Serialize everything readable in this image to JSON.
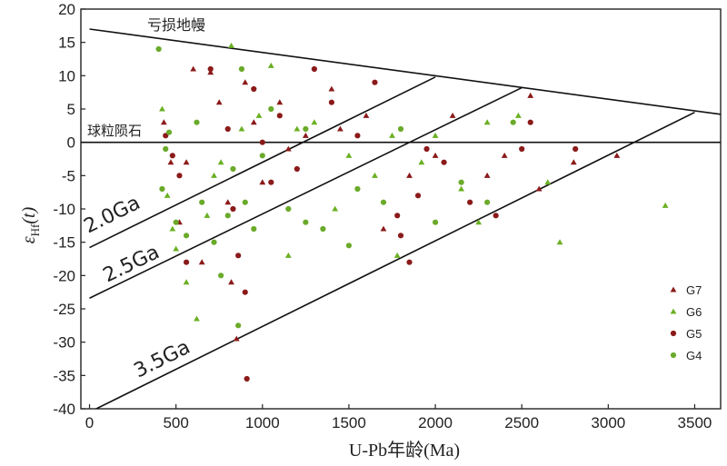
{
  "chart_data": {
    "type": "scatter",
    "title": "",
    "xlabel": "U-Pb年龄(Ma)",
    "ylabel": "εHf(t)",
    "xlim": [
      -50,
      3650
    ],
    "ylim": [
      -40,
      20
    ],
    "xticks": [
      0,
      500,
      1000,
      1500,
      2000,
      2500,
      3000,
      3500
    ],
    "yticks": [
      20,
      15,
      10,
      5,
      0,
      -5,
      -10,
      -15,
      -20,
      -25,
      -30,
      -35,
      -40
    ],
    "grid": false,
    "legend_position": "right",
    "reference_lines": [
      {
        "label": "亏损地幔",
        "points": [
          [
            0,
            17
          ],
          [
            3650,
            4.2
          ]
        ]
      },
      {
        "label": "球粒陨石",
        "points": [
          [
            -50,
            0
          ],
          [
            3650,
            0
          ]
        ]
      },
      {
        "label": "2.0Ga",
        "points": [
          [
            0,
            -15.8
          ],
          [
            2000,
            9.8
          ]
        ]
      },
      {
        "label": "2.5Ga",
        "points": [
          [
            0,
            -23.4
          ],
          [
            2500,
            8.2
          ]
        ]
      },
      {
        "label": "3.5Ga",
        "points": [
          [
            0,
            -40.5
          ],
          [
            3500,
            4.5
          ]
        ]
      }
    ],
    "series": [
      {
        "name": "G7",
        "marker": "triangle",
        "color": "#8b1a1a",
        "points": [
          [
            430,
            3
          ],
          [
            470,
            -3
          ],
          [
            520,
            -12
          ],
          [
            600,
            11
          ],
          [
            700,
            10.5
          ],
          [
            750,
            6
          ],
          [
            800,
            -9
          ],
          [
            820,
            -21
          ],
          [
            850,
            -29.5
          ],
          [
            900,
            9
          ],
          [
            950,
            3
          ],
          [
            1000,
            -6
          ],
          [
            1100,
            6
          ],
          [
            1150,
            -1
          ],
          [
            1250,
            1
          ],
          [
            1400,
            8
          ],
          [
            1450,
            2
          ],
          [
            1600,
            4
          ],
          [
            1700,
            -13
          ],
          [
            1850,
            -5
          ],
          [
            2000,
            -2
          ],
          [
            2100,
            4
          ],
          [
            2300,
            -5
          ],
          [
            2400,
            -2
          ],
          [
            2550,
            7
          ],
          [
            2600,
            -7
          ],
          [
            2800,
            -3
          ],
          [
            3050,
            -2
          ],
          [
            650,
            -18
          ],
          [
            560,
            -3
          ]
        ]
      },
      {
        "name": "G6",
        "marker": "triangle",
        "color": "#6ab023",
        "points": [
          [
            420,
            5
          ],
          [
            450,
            -8
          ],
          [
            480,
            -13
          ],
          [
            500,
            -16
          ],
          [
            560,
            -21
          ],
          [
            620,
            -26.5
          ],
          [
            680,
            -11
          ],
          [
            760,
            -3
          ],
          [
            820,
            14.5
          ],
          [
            880,
            2
          ],
          [
            980,
            4
          ],
          [
            1050,
            11.5
          ],
          [
            1150,
            -17
          ],
          [
            1300,
            3
          ],
          [
            1420,
            -10
          ],
          [
            1500,
            -2
          ],
          [
            1650,
            -5
          ],
          [
            1780,
            -17
          ],
          [
            1920,
            -3
          ],
          [
            2000,
            1
          ],
          [
            2150,
            -7
          ],
          [
            2300,
            3
          ],
          [
            2480,
            4
          ],
          [
            2650,
            -6
          ],
          [
            2720,
            -15
          ],
          [
            3330,
            -9.5
          ],
          [
            1750,
            1
          ],
          [
            2250,
            -12
          ],
          [
            720,
            -5
          ],
          [
            1200,
            2
          ]
        ]
      },
      {
        "name": "G5",
        "marker": "circle",
        "color": "#8b1a1a",
        "points": [
          [
            440,
            1
          ],
          [
            480,
            -2
          ],
          [
            520,
            -5
          ],
          [
            560,
            -18
          ],
          [
            700,
            11
          ],
          [
            800,
            2
          ],
          [
            830,
            -10
          ],
          [
            860,
            -17
          ],
          [
            900,
            -22.5
          ],
          [
            910,
            -35.5
          ],
          [
            950,
            8
          ],
          [
            1000,
            0
          ],
          [
            1050,
            -6
          ],
          [
            1100,
            4
          ],
          [
            1200,
            -4
          ],
          [
            1300,
            11
          ],
          [
            1400,
            6
          ],
          [
            1550,
            1
          ],
          [
            1650,
            9
          ],
          [
            1780,
            -11
          ],
          [
            1800,
            -14
          ],
          [
            1850,
            -18
          ],
          [
            1900,
            -8
          ],
          [
            1950,
            -1
          ],
          [
            2050,
            -3
          ],
          [
            2200,
            -9
          ],
          [
            2350,
            -11
          ],
          [
            2500,
            -1
          ],
          [
            2550,
            3
          ],
          [
            2810,
            -1
          ]
        ]
      },
      {
        "name": "G4",
        "marker": "circle",
        "color": "#6aaa2a",
        "points": [
          [
            400,
            14
          ],
          [
            420,
            -7
          ],
          [
            440,
            -1
          ],
          [
            460,
            1.5
          ],
          [
            500,
            -12
          ],
          [
            560,
            -14
          ],
          [
            620,
            3
          ],
          [
            650,
            -9
          ],
          [
            720,
            -15
          ],
          [
            760,
            -20
          ],
          [
            800,
            -11
          ],
          [
            830,
            -4
          ],
          [
            860,
            -27.5
          ],
          [
            880,
            11
          ],
          [
            900,
            -9
          ],
          [
            950,
            -13
          ],
          [
            1000,
            -2
          ],
          [
            1050,
            5
          ],
          [
            1150,
            -10
          ],
          [
            1250,
            -12
          ],
          [
            1350,
            -13
          ],
          [
            1500,
            -15.5
          ],
          [
            1550,
            -7
          ],
          [
            1700,
            -9
          ],
          [
            1800,
            2
          ],
          [
            2000,
            -12
          ],
          [
            2150,
            -6
          ],
          [
            2300,
            -9
          ],
          [
            2450,
            3
          ],
          [
            1250,
            2
          ]
        ]
      }
    ]
  }
}
